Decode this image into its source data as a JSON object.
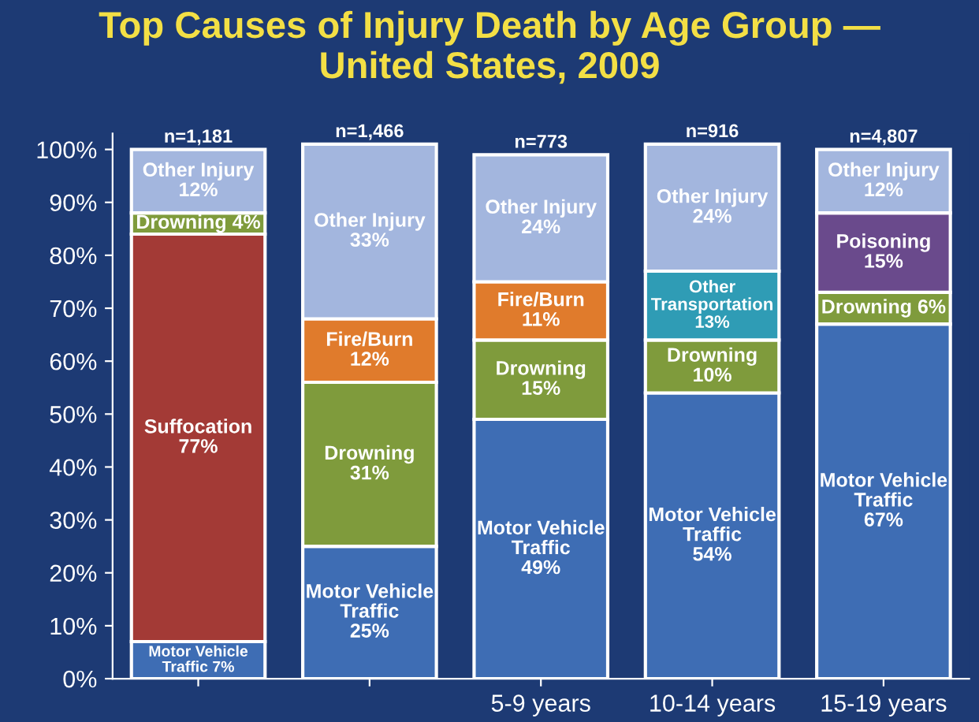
{
  "chart_data": {
    "type": "bar",
    "stacked": true,
    "title": "Top Causes of Injury Death by Age Group —\nUnited States, 2009",
    "categories": [
      null,
      null,
      "5-9 years",
      "10-14 years",
      "15-19 years"
    ],
    "series": [
      {
        "name": "Motor Vehicle Traffic",
        "color": "#3e6db4",
        "values": [
          7,
          25,
          49,
          54,
          67
        ],
        "value_labels": [
          "7%",
          "25%",
          "49%",
          "54%",
          "67%"
        ]
      },
      {
        "name": "Suffocation",
        "color": "#a33a36",
        "values": [
          77,
          null,
          null,
          null,
          null
        ],
        "value_labels": [
          "77%",
          null,
          null,
          null,
          null
        ]
      },
      {
        "name": "Drowning",
        "color": "#7f9b3c",
        "values": [
          4,
          31,
          15,
          10,
          6
        ],
        "value_labels": [
          "4%",
          "31%",
          "15%",
          "10%",
          "6%"
        ]
      },
      {
        "name": "Fire/Burn",
        "color": "#e07b2c",
        "values": [
          null,
          12,
          11,
          null,
          null
        ],
        "value_labels": [
          null,
          "12%",
          "11%",
          null,
          null
        ]
      },
      {
        "name": "Other Transportation",
        "color": "#2f9cb5",
        "values": [
          null,
          null,
          null,
          13,
          null
        ],
        "value_labels": [
          null,
          null,
          null,
          "13%",
          null
        ]
      },
      {
        "name": "Poisoning",
        "color": "#6a4a8c",
        "values": [
          null,
          null,
          null,
          null,
          15
        ],
        "value_labels": [
          null,
          null,
          null,
          null,
          "15%"
        ]
      },
      {
        "name": "Other Injury",
        "color": "#a3b6de",
        "values": [
          12,
          33,
          24,
          24,
          12
        ],
        "value_labels": [
          "12%",
          "33%",
          "24%",
          "24%",
          "12%"
        ]
      }
    ],
    "annotations": [
      "n=1,181",
      "n=1,466",
      "n=773",
      "n=916",
      "n=4,807"
    ],
    "ylim": [
      0,
      103
    ],
    "yticks": [
      {
        "value": 0,
        "label": "0%"
      },
      {
        "value": 10,
        "label": "10%"
      },
      {
        "value": 20,
        "label": "20%"
      },
      {
        "value": 30,
        "label": "30%"
      },
      {
        "value": 40,
        "label": "40%"
      },
      {
        "value": 50,
        "label": "50%"
      },
      {
        "value": 60,
        "label": "60%"
      },
      {
        "value": 70,
        "label": "70%"
      },
      {
        "value": 80,
        "label": "80%"
      },
      {
        "value": 90,
        "label": "90%"
      },
      {
        "value": 100,
        "label": "100%"
      }
    ],
    "grid": false,
    "legend": false
  }
}
